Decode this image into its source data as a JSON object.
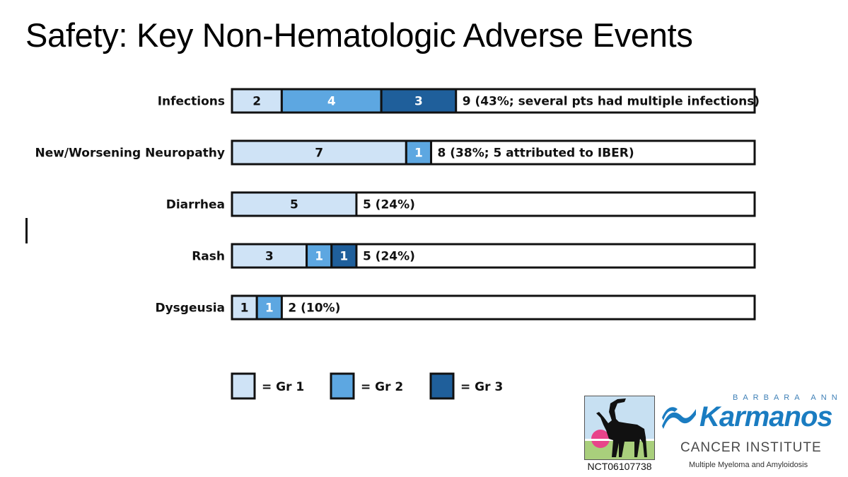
{
  "title": "Safety: Key Non-Hematologic Adverse Events",
  "colors": {
    "grade1": "#cfe3f6",
    "grade2": "#5da7e1",
    "grade3": "#1f5f9b",
    "border": "#111111"
  },
  "chart_data": {
    "type": "bar",
    "stacked": true,
    "orientation": "horizontal",
    "title": "Safety: Key Non-Hematologic Adverse Events",
    "x_max": 21,
    "categories": [
      "Infections",
      "New/Worsening Neuropathy",
      "Diarrhea",
      "Rash",
      "Dysgeusia"
    ],
    "series": [
      {
        "name": "Gr 1",
        "values": [
          2,
          7,
          5,
          3,
          1
        ]
      },
      {
        "name": "Gr 2",
        "values": [
          4,
          1,
          0,
          1,
          1
        ]
      },
      {
        "name": "Gr 3",
        "values": [
          3,
          0,
          0,
          1,
          0
        ]
      }
    ],
    "totals": [
      "9 (43%; several pts had multiple infections)",
      "8 (38%; 5 attributed to IBER)",
      "5 (24%)",
      "5 (24%)",
      "2 (10%)"
    ],
    "legend": [
      {
        "label": "= Gr 1",
        "grade": "grade1"
      },
      {
        "label": "= Gr 2",
        "grade": "grade2"
      },
      {
        "label": "= Gr 3",
        "grade": "grade3"
      }
    ],
    "legend_position": "bottom"
  },
  "footer": {
    "trial_id": "NCT06107738",
    "brand_top": "BARBARA ANN",
    "brand_name": "Karmanos",
    "brand_sub": "CANCER INSTITUTE",
    "brand_sub2": "Multiple Myeloma and Amyloidosis",
    "logo_icon": "ibex-logo-icon",
    "brand_icon": "karmanos-logo-icon"
  }
}
